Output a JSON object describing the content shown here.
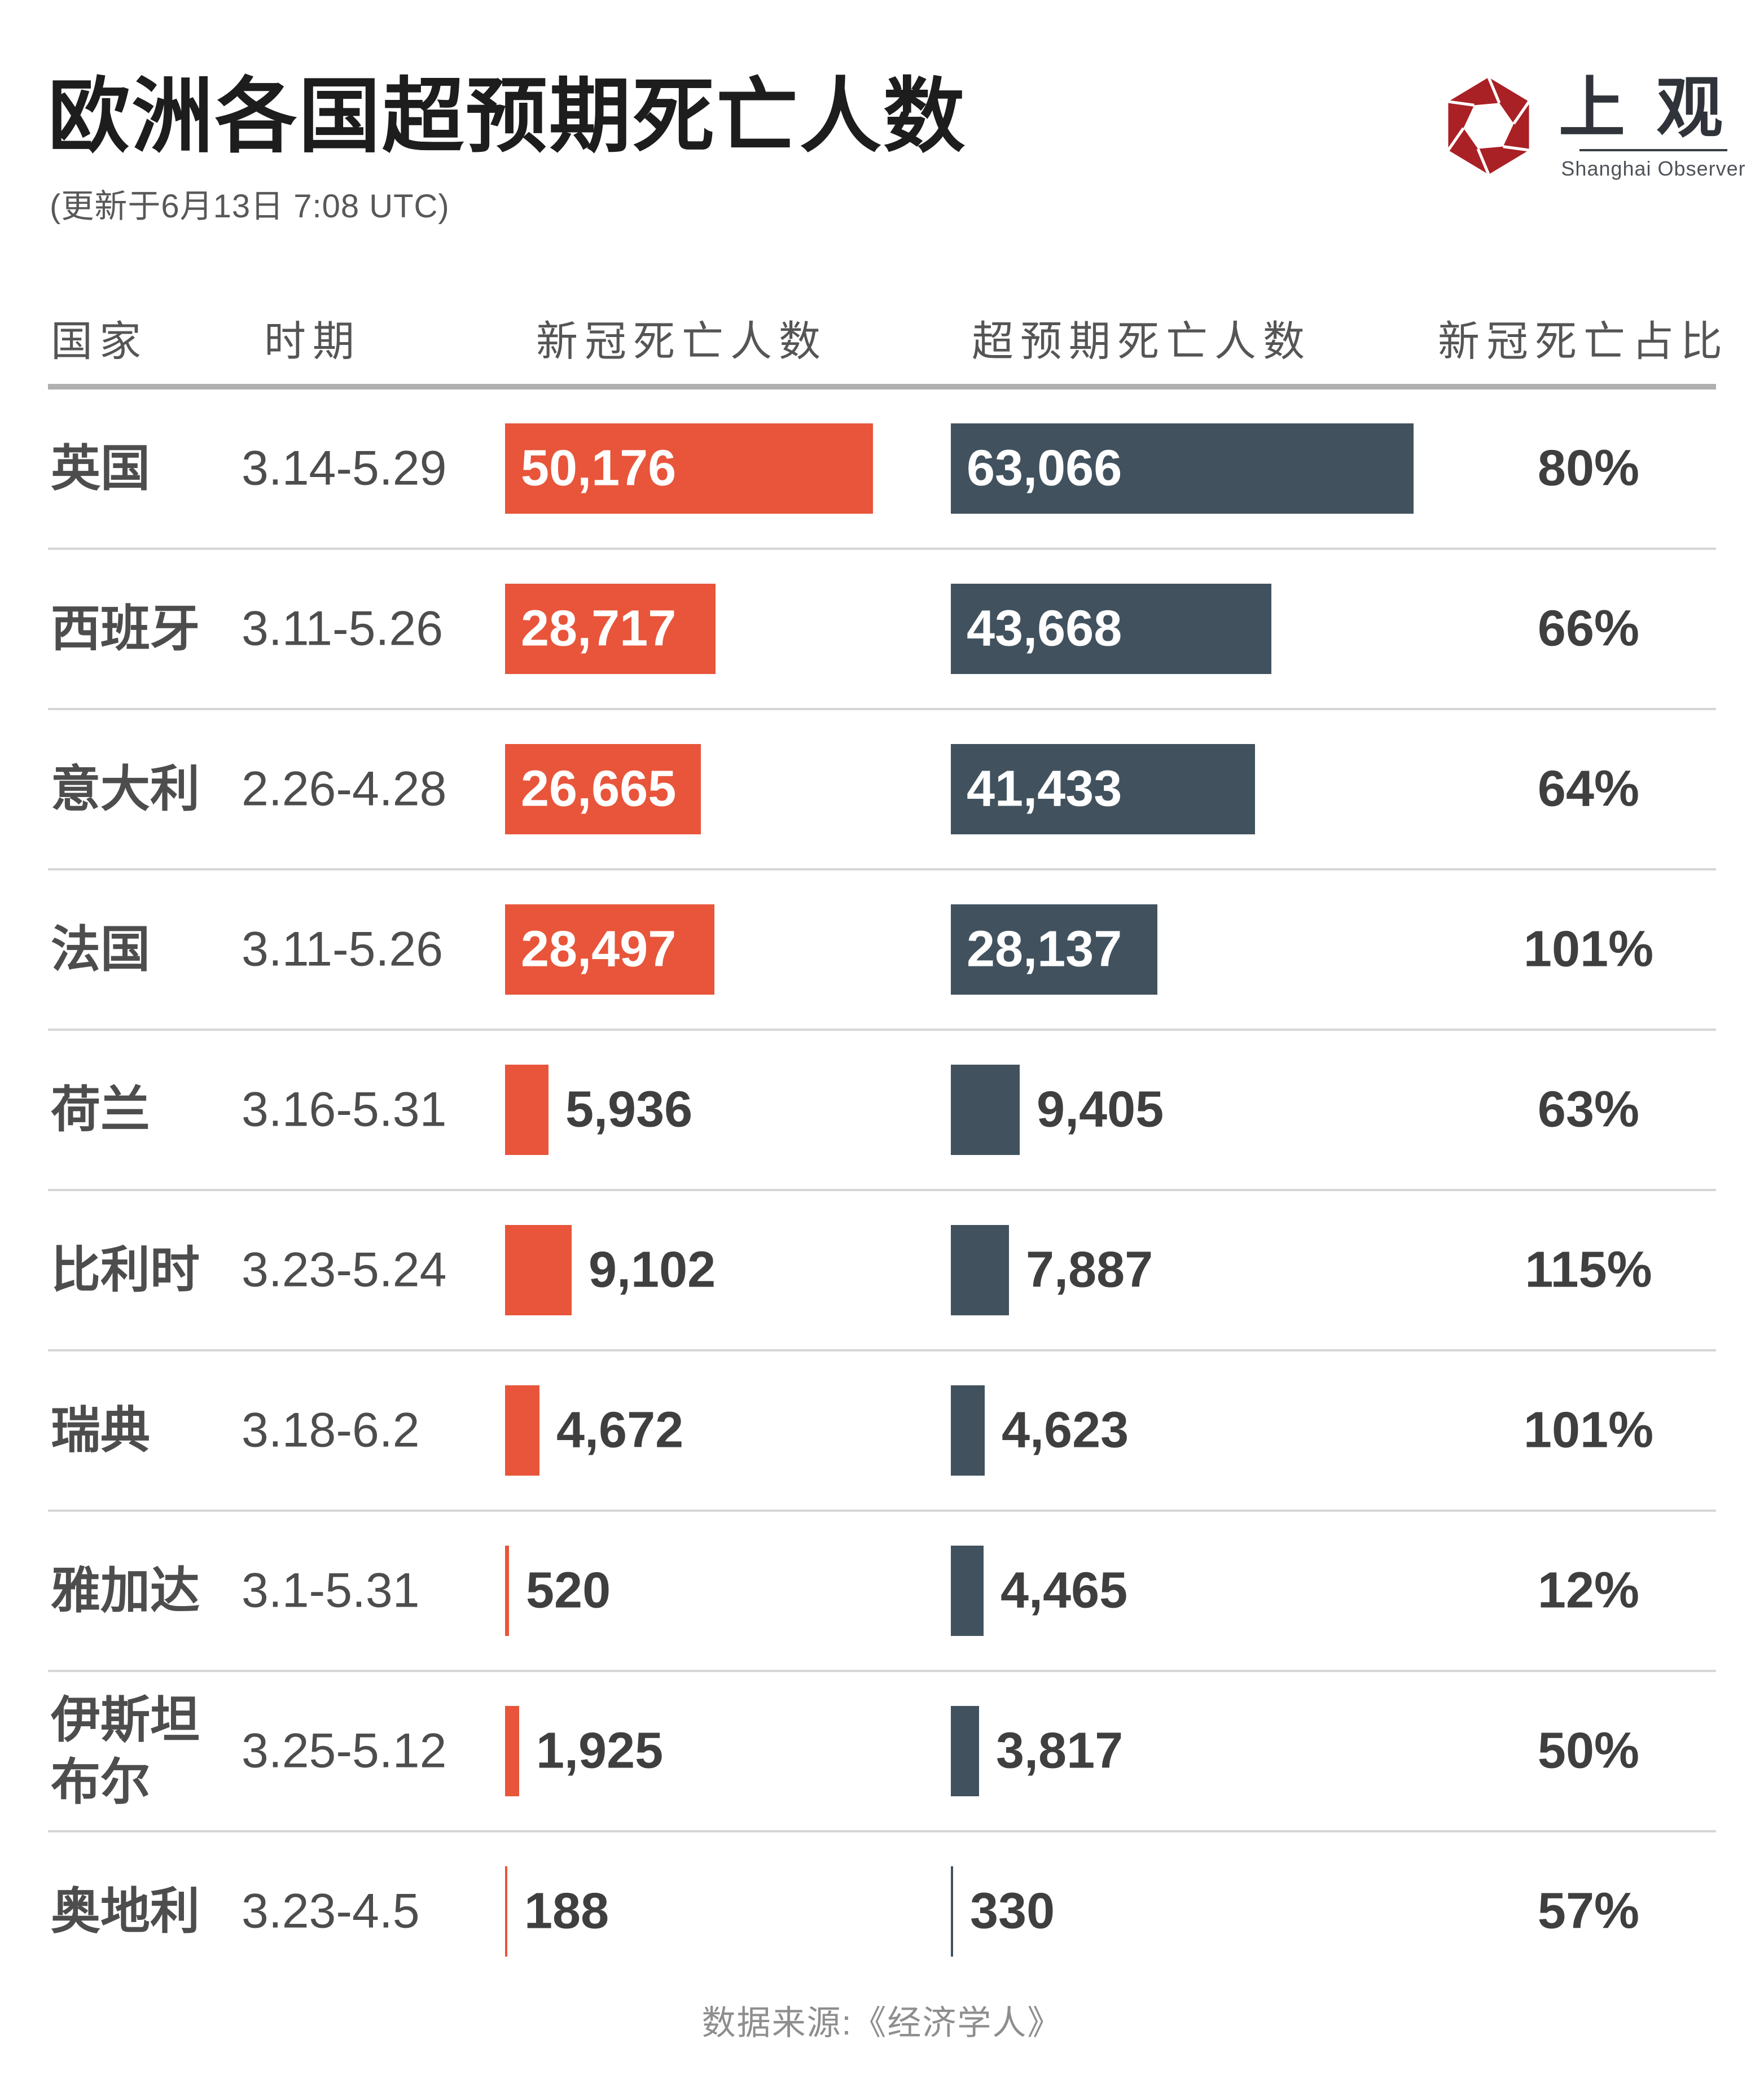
{
  "page": {
    "title": "欧洲各国超预期死亡人数",
    "subtitle": "(更新于6月13日 7:08 UTC)",
    "footer_source": "数据来源:《经济学人》"
  },
  "logo": {
    "cn": "上观",
    "en": "Shanghai Observer"
  },
  "columns": [
    "国家",
    "时期",
    "新冠死亡人数",
    "超预期死亡人数",
    "新冠死亡占比"
  ],
  "colors": {
    "covid_bar": "#E8553A",
    "excess_bar": "#41525E",
    "logo_red": "#A92025",
    "title_text": "#1d1d1d",
    "row_text": "#4d4d4d",
    "divider": "#b0b0b0"
  },
  "chart_data": {
    "type": "bar",
    "orientation": "horizontal",
    "title": "欧洲各国超预期死亡人数",
    "subtitle": "(更新于6月13日 7:08 UTC)",
    "categories": [
      "英国",
      "西班牙",
      "意大利",
      "法国",
      "荷兰",
      "比利时",
      "瑞典",
      "雅加达",
      "伊斯坦布尔",
      "奥地利"
    ],
    "periods": [
      "3.14-5.29",
      "3.11-5.26",
      "2.26-4.28",
      "3.11-5.26",
      "3.16-5.31",
      "3.23-5.24",
      "3.18-6.2",
      "3.1-5.31",
      "3.25-5.12",
      "3.23-4.5"
    ],
    "series": [
      {
        "name": "新冠死亡人数",
        "color": "#E8553A",
        "values": [
          50176,
          28717,
          26665,
          28497,
          5936,
          9102,
          4672,
          520,
          1925,
          188
        ],
        "labels": [
          "50,176",
          "28,717",
          "26,665",
          "28,497",
          "5,936",
          "9,102",
          "4,672",
          "520",
          "1,925",
          "188"
        ]
      },
      {
        "name": "超预期死亡人数",
        "color": "#41525E",
        "values": [
          63066,
          43668,
          41433,
          28137,
          9405,
          7887,
          4623,
          4465,
          3817,
          330
        ],
        "labels": [
          "63,066",
          "43,668",
          "41,433",
          "28,137",
          "9,405",
          "7,887",
          "4,623",
          "4,465",
          "3,817",
          "330"
        ]
      }
    ],
    "percent_labels": [
      "80%",
      "66%",
      "64%",
      "101%",
      "63%",
      "115%",
      "101%",
      "12%",
      "50%",
      "57%"
    ],
    "xlim": [
      0,
      63066
    ],
    "grid": false,
    "legend": "column-headers",
    "source": "数据来源:《经济学人》"
  },
  "table": {
    "rows": [
      {
        "country": "英国",
        "period": "3.14-5.29",
        "covid_label": "50,176",
        "covid_value": 50176,
        "excess_label": "63,066",
        "excess_value": 63066,
        "percent": "80%"
      },
      {
        "country": "西班牙",
        "period": "3.11-5.26",
        "covid_label": "28,717",
        "covid_value": 28717,
        "excess_label": "43,668",
        "excess_value": 43668,
        "percent": "66%"
      },
      {
        "country": "意大利",
        "period": "2.26-4.28",
        "covid_label": "26,665",
        "covid_value": 26665,
        "excess_label": "41,433",
        "excess_value": 41433,
        "percent": "64%"
      },
      {
        "country": "法国",
        "period": "3.11-5.26",
        "covid_label": "28,497",
        "covid_value": 28497,
        "excess_label": "28,137",
        "excess_value": 28137,
        "percent": "101%"
      },
      {
        "country": "荷兰",
        "period": "3.16-5.31",
        "covid_label": "5,936",
        "covid_value": 5936,
        "excess_label": "9,405",
        "excess_value": 9405,
        "percent": "63%"
      },
      {
        "country": "比利时",
        "period": "3.23-5.24",
        "covid_label": "9,102",
        "covid_value": 9102,
        "excess_label": "7,887",
        "excess_value": 7887,
        "percent": "115%"
      },
      {
        "country": "瑞典",
        "period": "3.18-6.2",
        "covid_label": "4,672",
        "covid_value": 4672,
        "excess_label": "4,623",
        "excess_value": 4623,
        "percent": "101%"
      },
      {
        "country": "雅加达",
        "period": "3.1-5.31",
        "covid_label": "520",
        "covid_value": 520,
        "excess_label": "4,465",
        "excess_value": 4465,
        "percent": "12%"
      },
      {
        "country": "伊斯坦布尔",
        "period": "3.25-5.12",
        "covid_label": "1,925",
        "covid_value": 1925,
        "excess_label": "3,817",
        "excess_value": 3817,
        "percent": "50%"
      },
      {
        "country": "奥地利",
        "period": "3.23-4.5",
        "covid_label": "188",
        "covid_value": 188,
        "excess_label": "330",
        "excess_value": 330,
        "percent": "57%"
      }
    ]
  }
}
